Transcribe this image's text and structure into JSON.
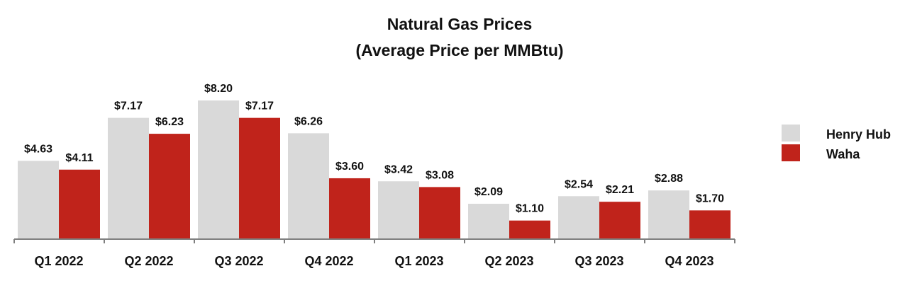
{
  "chart_data": {
    "type": "bar",
    "title": "Natural Gas Prices",
    "subtitle": "(Average Price per MMBtu)",
    "xlabel": "",
    "ylabel": "",
    "categories": [
      "Q1 2022",
      "Q2 2022",
      "Q3 2022",
      "Q4 2022",
      "Q1 2023",
      "Q2 2023",
      "Q3 2023",
      "Q4 2023"
    ],
    "series": [
      {
        "name": "Henry Hub",
        "color": "#d9d9d9",
        "values": [
          4.63,
          7.17,
          8.2,
          6.26,
          3.42,
          2.09,
          2.54,
          2.88
        ],
        "labels": [
          "$4.63",
          "$7.17",
          "$8.20",
          "$6.26",
          "$3.42",
          "$2.09",
          "$2.54",
          "$2.88"
        ]
      },
      {
        "name": "Waha",
        "color": "#c0231b",
        "values": [
          4.11,
          6.23,
          7.17,
          3.6,
          3.08,
          1.1,
          2.21,
          1.7
        ],
        "labels": [
          "$4.11",
          "$6.23",
          "$7.17",
          "$3.60",
          "$3.08",
          "$1.10",
          "$2.21",
          "$1.70"
        ]
      }
    ],
    "ylim": [
      0,
      8.2
    ],
    "grid": false,
    "legend_position": "right"
  }
}
